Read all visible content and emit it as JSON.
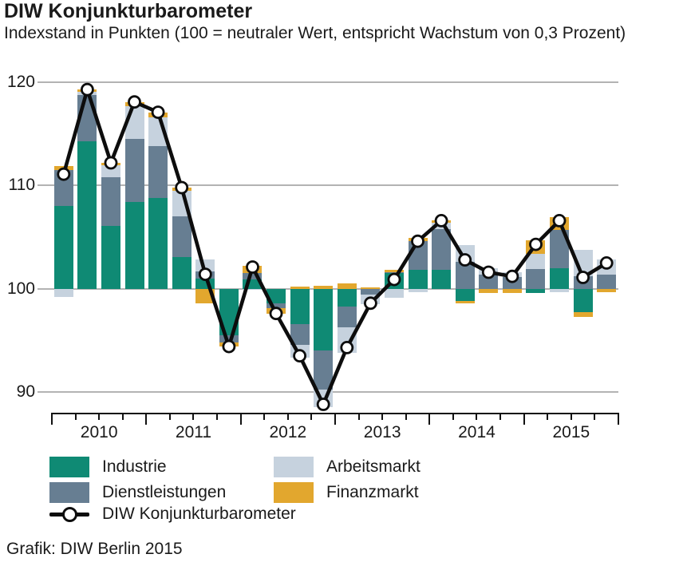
{
  "header": {
    "title": "DIW Konjunkturbarometer",
    "subtitle": "Indexstand in Punkten (100 = neutraler Wert, entspricht Wachstum von 0,3 Prozent)"
  },
  "source": "Grafik: DIW Berlin 2015",
  "chart_data": {
    "type": "bar",
    "subtype": "stacked-contribution-bars-with-line",
    "baseline": 100,
    "title": "DIW Konjunkturbarometer",
    "ylabel": "Indexstand in Punkten",
    "yticks": [
      90,
      100,
      110,
      120
    ],
    "ylim": [
      87.5,
      121
    ],
    "grid": "horizontal",
    "years": [
      "2010",
      "2011",
      "2012",
      "2013",
      "2014",
      "2015"
    ],
    "categories": [
      "2010 Q1",
      "2010 Q2",
      "2010 Q3",
      "2010 Q4",
      "2011 Q1",
      "2011 Q2",
      "2011 Q3",
      "2011 Q4",
      "2012 Q1",
      "2012 Q2",
      "2012 Q3",
      "2012 Q4",
      "2013 Q1",
      "2013 Q2",
      "2013 Q3",
      "2013 Q4",
      "2014 Q1",
      "2014 Q2",
      "2014 Q3",
      "2014 Q4",
      "2015 Q1",
      "2015 Q2",
      "2015 Q3",
      "2015 Q4"
    ],
    "series": [
      {
        "name": "Industrie",
        "kind": "bar-contribution",
        "color": "#0F8A74",
        "values": [
          8.0,
          14.3,
          6.1,
          8.4,
          8.8,
          3.1,
          1.0,
          -4.5,
          0.9,
          -1.4,
          -3.4,
          -6.0,
          -1.7,
          0.0,
          1.5,
          1.8,
          1.8,
          -1.2,
          0.0,
          0.0,
          -0.4,
          2.0,
          -2.3,
          0.0
        ]
      },
      {
        "name": "Dienstleistungen",
        "kind": "bar-contribution",
        "color": "#677E92",
        "values": [
          3.5,
          4.5,
          4.7,
          6.1,
          5.0,
          3.9,
          0.7,
          -0.7,
          0.6,
          -0.5,
          -2.0,
          -3.8,
          -2.0,
          -0.6,
          0.1,
          2.8,
          4.0,
          2.6,
          1.4,
          1.1,
          1.9,
          3.7,
          1.2,
          1.4
        ]
      },
      {
        "name": "Arbeitsmarkt",
        "kind": "bar-contribution",
        "color": "#C6D2DE",
        "values": [
          -0.8,
          0.3,
          1.2,
          3.2,
          2.8,
          2.5,
          1.1,
          0.0,
          -0.1,
          0.0,
          -1.3,
          -1.7,
          -2.5,
          -0.9,
          -0.9,
          -0.3,
          0.6,
          1.6,
          0.6,
          0.5,
          1.5,
          -0.3,
          2.6,
          1.4
        ]
      },
      {
        "name": "Finanzmarkt",
        "kind": "bar-contribution",
        "color": "#E2A72E",
        "values": [
          0.4,
          0.2,
          0.2,
          0.4,
          0.5,
          0.3,
          -1.4,
          -0.4,
          0.7,
          -0.5,
          0.2,
          0.3,
          0.5,
          0.1,
          0.2,
          0.3,
          0.2,
          -0.2,
          -0.4,
          -0.4,
          1.3,
          1.2,
          -0.4,
          -0.3
        ]
      },
      {
        "name": "DIW Konjunkturbarometer",
        "kind": "line",
        "color": "#0D0D0D",
        "marker": "circle-white",
        "values": [
          111.1,
          119.3,
          112.2,
          118.1,
          117.1,
          109.8,
          101.4,
          94.4,
          102.1,
          97.6,
          93.5,
          88.8,
          94.3,
          98.6,
          100.9,
          104.6,
          106.6,
          102.8,
          101.6,
          101.2,
          104.3,
          106.6,
          101.1,
          102.5
        ]
      }
    ],
    "legend": [
      {
        "label": "Industrie",
        "swatch": "industrie"
      },
      {
        "label": "Dienstleistungen",
        "swatch": "dienstleistungen"
      },
      {
        "label": "DIW Konjunkturbarometer",
        "swatch": "line"
      },
      {
        "label": "Arbeitsmarkt",
        "swatch": "arbeitsmarkt"
      },
      {
        "label": "Finanzmarkt",
        "swatch": "finanzmarkt"
      }
    ],
    "legend_position": "bottom-left"
  },
  "colors": {
    "industrie": "#0F8A74",
    "dienstleistungen": "#677E92",
    "arbeitsmarkt": "#C6D2DE",
    "finanzmarkt": "#E2A72E",
    "line": "#0D0D0D",
    "grid": "#B3B3B3",
    "axis": "#111111"
  }
}
